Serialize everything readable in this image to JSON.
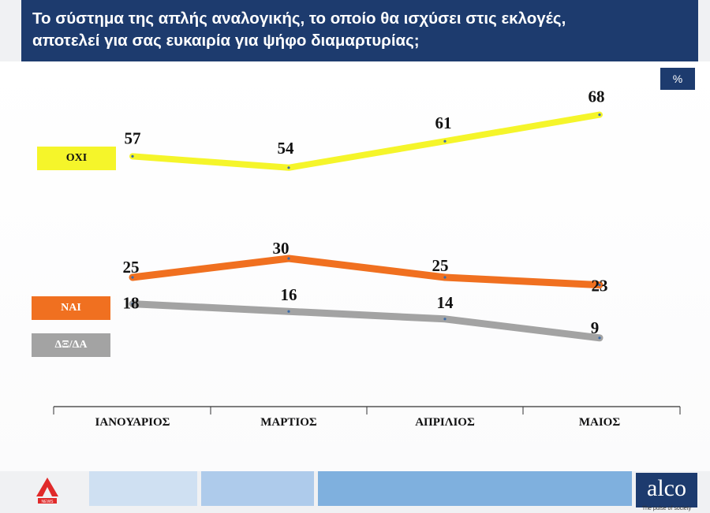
{
  "header": {
    "title_line1": "Το σύστημα της απλής αναλογικής, το οποίο θα ισχύσει στις εκλογές,",
    "title_line2": "αποτελεί για σας ευκαιρία για ψήφο διαμαρτυρίας;",
    "unit": "%"
  },
  "chart_data": {
    "type": "line",
    "categories": [
      "ΙΑΝΟΥΑΡΙΟΣ",
      "ΜΑΡΤΙΟΣ",
      "ΑΠΡΙΛΙΟΣ",
      "ΜΑΙΟΣ"
    ],
    "series": [
      {
        "name": "ΟΧΙ",
        "values": [
          57,
          54,
          61,
          68
        ],
        "color": "#f5f52a"
      },
      {
        "name": "ΝΑΙ",
        "values": [
          25,
          30,
          25,
          23
        ],
        "color": "#f07020"
      },
      {
        "name": "ΔΞ/ΔΑ",
        "values": [
          18,
          16,
          14,
          9
        ],
        "color": "#a3a3a3"
      }
    ],
    "legend_position": "left",
    "grid": false,
    "data_labels": true
  },
  "footer": {
    "logo_left_text": "NEWS",
    "logo_right": "alco",
    "logo_right_tagline": "The pulse of society",
    "strip_colors": [
      "#cfe0f2",
      "#aecbeb",
      "#7fb0de"
    ]
  }
}
